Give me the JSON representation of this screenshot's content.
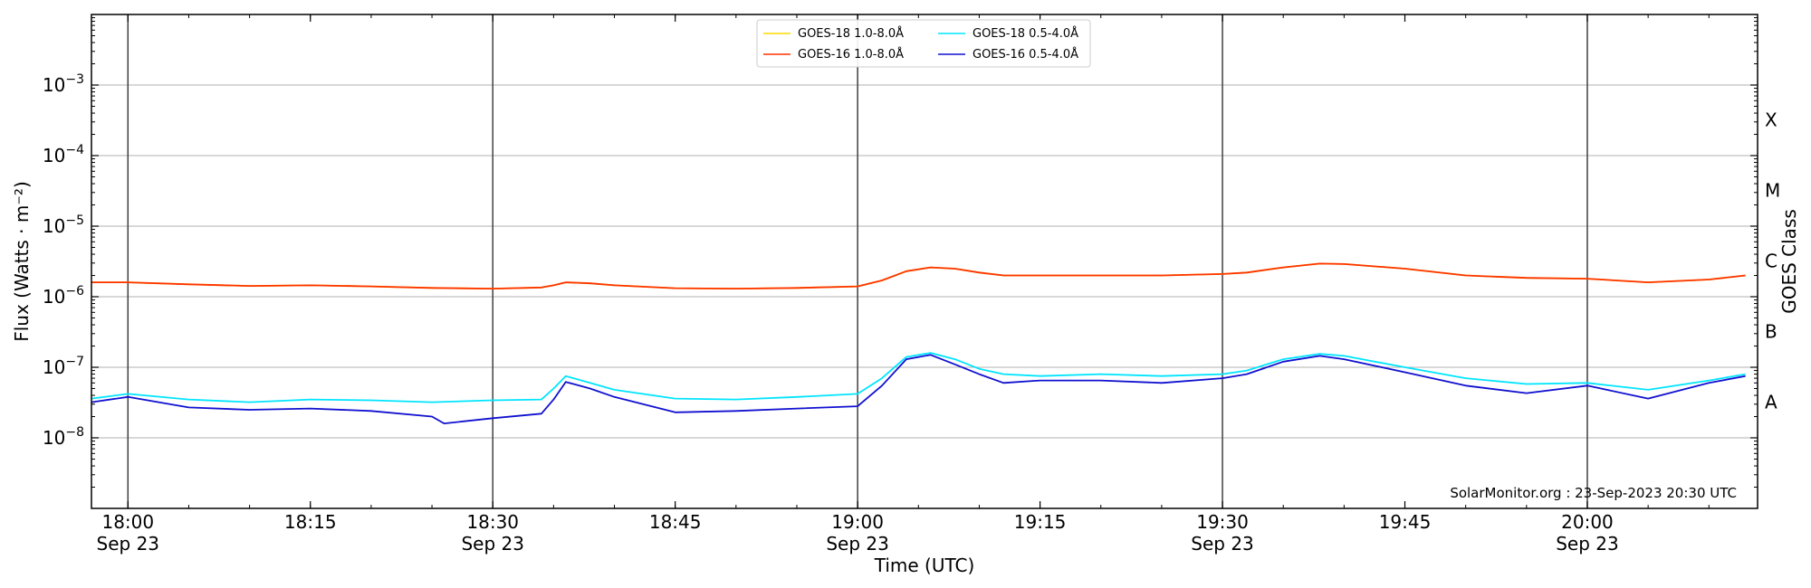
{
  "chart_data": {
    "type": "line",
    "title": "",
    "xlabel": "Time (UTC)",
    "ylabel": "Flux (Watts · m⁻²)",
    "y2label": "GOES Class",
    "yscale": "log",
    "ylim": [
      1e-09,
      0.01
    ],
    "xlim": [
      "2023-09-23T17:57",
      "2023-09-23T20:14"
    ],
    "grid": "horizontal",
    "legend_position": "top-center",
    "y_ticks": [
      {
        "value": 0.001,
        "base": "10",
        "exp": "−3"
      },
      {
        "value": 0.0001,
        "base": "10",
        "exp": "−4"
      },
      {
        "value": 1e-05,
        "base": "10",
        "exp": "−5"
      },
      {
        "value": 1e-06,
        "base": "10",
        "exp": "−6"
      },
      {
        "value": 1e-07,
        "base": "10",
        "exp": "−7"
      },
      {
        "value": 1e-08,
        "base": "10",
        "exp": "−8"
      }
    ],
    "goes_classes": [
      {
        "label": "X",
        "value": 0.00032
      },
      {
        "label": "M",
        "value": 3.2e-05
      },
      {
        "label": "C",
        "value": 3.2e-06
      },
      {
        "label": "B",
        "value": 3.2e-07
      },
      {
        "label": "A",
        "value": 3.2e-08
      }
    ],
    "x_ticks": [
      {
        "time": "2023-09-23T18:00",
        "label": "18:00",
        "sublabel": "Sep 23",
        "major": true
      },
      {
        "time": "2023-09-23T18:15",
        "label": "18:15",
        "sublabel": "",
        "major": false
      },
      {
        "time": "2023-09-23T18:30",
        "label": "18:30",
        "sublabel": "Sep 23",
        "major": true
      },
      {
        "time": "2023-09-23T18:45",
        "label": "18:45",
        "sublabel": "",
        "major": false
      },
      {
        "time": "2023-09-23T19:00",
        "label": "19:00",
        "sublabel": "Sep 23",
        "major": true
      },
      {
        "time": "2023-09-23T19:15",
        "label": "19:15",
        "sublabel": "",
        "major": false
      },
      {
        "time": "2023-09-23T19:30",
        "label": "19:30",
        "sublabel": "Sep 23",
        "major": true
      },
      {
        "time": "2023-09-23T19:45",
        "label": "19:45",
        "sublabel": "",
        "major": false
      },
      {
        "time": "2023-09-23T20:00",
        "label": "20:00",
        "sublabel": "Sep 23",
        "major": true
      }
    ],
    "annotation": "SolarMonitor.org : 23-Sep-2023 20:30 UTC",
    "series": [
      {
        "name": "GOES-18 1.0-8.0Å",
        "color": "#ffd700",
        "x": [
          "2023-09-23T17:57",
          "2023-09-23T18:00",
          "2023-09-23T18:05",
          "2023-09-23T18:10",
          "2023-09-23T18:15",
          "2023-09-23T18:20",
          "2023-09-23T18:25",
          "2023-09-23T18:30",
          "2023-09-23T18:34",
          "2023-09-23T18:35",
          "2023-09-23T18:36",
          "2023-09-23T18:38",
          "2023-09-23T18:40",
          "2023-09-23T18:45",
          "2023-09-23T18:50",
          "2023-09-23T18:55",
          "2023-09-23T19:00",
          "2023-09-23T19:02",
          "2023-09-23T19:04",
          "2023-09-23T19:06",
          "2023-09-23T19:08",
          "2023-09-23T19:10",
          "2023-09-23T19:12",
          "2023-09-23T19:15",
          "2023-09-23T19:20",
          "2023-09-23T19:25",
          "2023-09-23T19:30",
          "2023-09-23T19:32",
          "2023-09-23T19:35",
          "2023-09-23T19:38",
          "2023-09-23T19:40",
          "2023-09-23T19:45",
          "2023-09-23T19:50",
          "2023-09-23T19:55",
          "2023-09-23T20:00",
          "2023-09-23T20:05",
          "2023-09-23T20:10",
          "2023-09-23T20:13"
        ],
        "values": [
          1.6e-06,
          1.6e-06,
          1.5e-06,
          1.42e-06,
          1.45e-06,
          1.4e-06,
          1.33e-06,
          1.3e-06,
          1.35e-06,
          1.45e-06,
          1.6e-06,
          1.55e-06,
          1.45e-06,
          1.32e-06,
          1.3e-06,
          1.33e-06,
          1.4e-06,
          1.7e-06,
          2.3e-06,
          2.6e-06,
          2.5e-06,
          2.2e-06,
          2e-06,
          2e-06,
          2e-06,
          2e-06,
          2.1e-06,
          2.2e-06,
          2.6e-06,
          2.95e-06,
          2.9e-06,
          2.5e-06,
          2e-06,
          1.85e-06,
          1.8e-06,
          1.6e-06,
          1.75e-06,
          2e-06
        ]
      },
      {
        "name": "GOES-16 1.0-8.0Å",
        "color": "#ff3300",
        "x": [
          "2023-09-23T17:57",
          "2023-09-23T18:00",
          "2023-09-23T18:05",
          "2023-09-23T18:10",
          "2023-09-23T18:15",
          "2023-09-23T18:20",
          "2023-09-23T18:25",
          "2023-09-23T18:30",
          "2023-09-23T18:34",
          "2023-09-23T18:35",
          "2023-09-23T18:36",
          "2023-09-23T18:38",
          "2023-09-23T18:40",
          "2023-09-23T18:45",
          "2023-09-23T18:50",
          "2023-09-23T18:55",
          "2023-09-23T19:00",
          "2023-09-23T19:02",
          "2023-09-23T19:04",
          "2023-09-23T19:06",
          "2023-09-23T19:08",
          "2023-09-23T19:10",
          "2023-09-23T19:12",
          "2023-09-23T19:15",
          "2023-09-23T19:20",
          "2023-09-23T19:25",
          "2023-09-23T19:30",
          "2023-09-23T19:32",
          "2023-09-23T19:35",
          "2023-09-23T19:38",
          "2023-09-23T19:40",
          "2023-09-23T19:45",
          "2023-09-23T19:50",
          "2023-09-23T19:55",
          "2023-09-23T20:00",
          "2023-09-23T20:05",
          "2023-09-23T20:10",
          "2023-09-23T20:13"
        ],
        "values": [
          1.6e-06,
          1.6e-06,
          1.5e-06,
          1.42e-06,
          1.45e-06,
          1.4e-06,
          1.33e-06,
          1.3e-06,
          1.35e-06,
          1.45e-06,
          1.6e-06,
          1.55e-06,
          1.45e-06,
          1.32e-06,
          1.3e-06,
          1.33e-06,
          1.4e-06,
          1.7e-06,
          2.3e-06,
          2.6e-06,
          2.5e-06,
          2.2e-06,
          2e-06,
          2e-06,
          2e-06,
          2e-06,
          2.1e-06,
          2.2e-06,
          2.6e-06,
          2.95e-06,
          2.9e-06,
          2.5e-06,
          2e-06,
          1.85e-06,
          1.8e-06,
          1.6e-06,
          1.75e-06,
          2e-06
        ]
      },
      {
        "name": "GOES-18 0.5-4.0Å",
        "color": "#00e5ff",
        "x": [
          "2023-09-23T17:57",
          "2023-09-23T18:00",
          "2023-09-23T18:05",
          "2023-09-23T18:10",
          "2023-09-23T18:15",
          "2023-09-23T18:20",
          "2023-09-23T18:25",
          "2023-09-23T18:30",
          "2023-09-23T18:34",
          "2023-09-23T18:35",
          "2023-09-23T18:36",
          "2023-09-23T18:38",
          "2023-09-23T18:40",
          "2023-09-23T18:45",
          "2023-09-23T18:50",
          "2023-09-23T18:55",
          "2023-09-23T19:00",
          "2023-09-23T19:02",
          "2023-09-23T19:04",
          "2023-09-23T19:06",
          "2023-09-23T19:08",
          "2023-09-23T19:10",
          "2023-09-23T19:12",
          "2023-09-23T19:15",
          "2023-09-23T19:20",
          "2023-09-23T19:25",
          "2023-09-23T19:30",
          "2023-09-23T19:32",
          "2023-09-23T19:35",
          "2023-09-23T19:38",
          "2023-09-23T19:40",
          "2023-09-23T19:45",
          "2023-09-23T19:50",
          "2023-09-23T19:55",
          "2023-09-23T20:00",
          "2023-09-23T20:05",
          "2023-09-23T20:10",
          "2023-09-23T20:13"
        ],
        "values": [
          3.6e-08,
          4.2e-08,
          3.5e-08,
          3.2e-08,
          3.5e-08,
          3.4e-08,
          3.2e-08,
          3.4e-08,
          3.5e-08,
          5e-08,
          7.5e-08,
          6e-08,
          4.8e-08,
          3.6e-08,
          3.5e-08,
          3.8e-08,
          4.2e-08,
          7e-08,
          1.4e-07,
          1.6e-07,
          1.3e-07,
          9.5e-08,
          8e-08,
          7.5e-08,
          8e-08,
          7.5e-08,
          8e-08,
          9e-08,
          1.3e-07,
          1.55e-07,
          1.45e-07,
          1e-07,
          7e-08,
          5.8e-08,
          6e-08,
          4.8e-08,
          6.5e-08,
          8e-08
        ]
      },
      {
        "name": "GOES-16 0.5-4.0Å",
        "color": "#1010d0",
        "x": [
          "2023-09-23T17:57",
          "2023-09-23T18:00",
          "2023-09-23T18:05",
          "2023-09-23T18:10",
          "2023-09-23T18:15",
          "2023-09-23T18:20",
          "2023-09-23T18:25",
          "2023-09-23T18:26",
          "2023-09-23T18:30",
          "2023-09-23T18:34",
          "2023-09-23T18:35",
          "2023-09-23T18:36",
          "2023-09-23T18:38",
          "2023-09-23T18:40",
          "2023-09-23T18:45",
          "2023-09-23T18:50",
          "2023-09-23T18:55",
          "2023-09-23T19:00",
          "2023-09-23T19:02",
          "2023-09-23T19:04",
          "2023-09-23T19:06",
          "2023-09-23T19:08",
          "2023-09-23T19:10",
          "2023-09-23T19:12",
          "2023-09-23T19:15",
          "2023-09-23T19:20",
          "2023-09-23T19:25",
          "2023-09-23T19:30",
          "2023-09-23T19:32",
          "2023-09-23T19:35",
          "2023-09-23T19:38",
          "2023-09-23T19:40",
          "2023-09-23T19:45",
          "2023-09-23T19:50",
          "2023-09-23T19:55",
          "2023-09-23T20:00",
          "2023-09-23T20:05",
          "2023-09-23T20:10",
          "2023-09-23T20:13"
        ],
        "values": [
          3.2e-08,
          3.8e-08,
          2.7e-08,
          2.5e-08,
          2.6e-08,
          2.4e-08,
          2e-08,
          1.6e-08,
          1.9e-08,
          2.2e-08,
          3.5e-08,
          6.2e-08,
          5e-08,
          3.8e-08,
          2.3e-08,
          2.4e-08,
          2.6e-08,
          2.8e-08,
          5.5e-08,
          1.3e-07,
          1.5e-07,
          1.1e-07,
          8e-08,
          6e-08,
          6.5e-08,
          6.5e-08,
          6e-08,
          7e-08,
          8e-08,
          1.2e-07,
          1.45e-07,
          1.3e-07,
          8.5e-08,
          5.5e-08,
          4.3e-08,
          5.5e-08,
          3.6e-08,
          6e-08,
          7.5e-08
        ]
      }
    ]
  }
}
